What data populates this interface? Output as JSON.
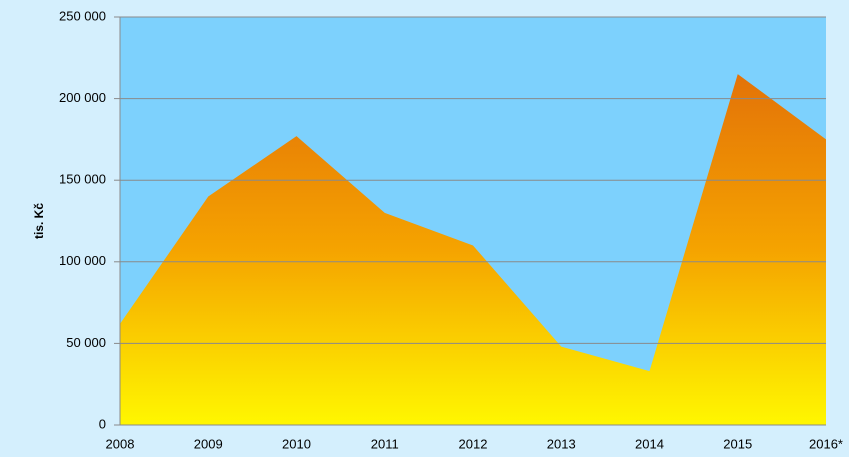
{
  "chart_data": {
    "type": "area",
    "y_label": "tis. Kč",
    "categories": [
      "2008",
      "2009",
      "2010",
      "2011",
      "2012",
      "2013",
      "2014",
      "2015",
      "2016*"
    ],
    "values": [
      62000,
      140000,
      177000,
      130000,
      110000,
      48000,
      33000,
      215000,
      175000
    ],
    "gradient": [
      "#fff700",
      "#f5a300",
      "#e37208"
    ],
    "ylim": [
      0,
      250000
    ],
    "yticks": [
      0,
      {
        "value": 50000,
        "label": "50 000"
      },
      {
        "value": 100000,
        "label": "100 000"
      },
      {
        "value": 150000,
        "label": "150 000"
      },
      {
        "value": 200000,
        "label": "200 000"
      },
      {
        "value": 250000,
        "label": "250 000"
      }
    ],
    "grid": true
  }
}
